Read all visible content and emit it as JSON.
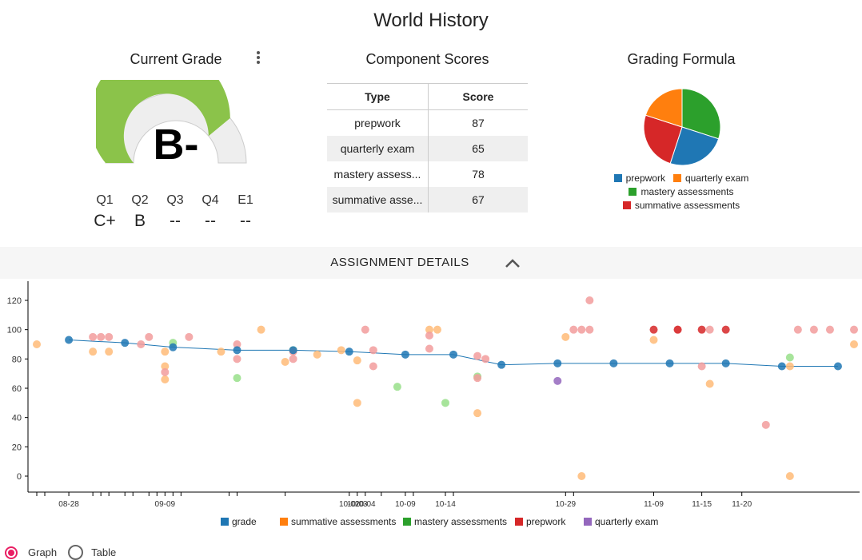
{
  "page": {
    "title": "World History"
  },
  "current_grade": {
    "title": "Current Grade",
    "letter": "B-",
    "gauge_fraction": 0.78,
    "colors": {
      "fill": "#8bc34a",
      "track": "#eeeeee"
    },
    "quarters": [
      {
        "label": "Q1",
        "value": "C+"
      },
      {
        "label": "Q2",
        "value": "B"
      },
      {
        "label": "Q3",
        "value": "--"
      },
      {
        "label": "Q4",
        "value": "--"
      },
      {
        "label": "E1",
        "value": "--"
      }
    ]
  },
  "component_scores": {
    "title": "Component Scores",
    "headers": [
      "Type",
      "Score"
    ],
    "rows": [
      {
        "type": "prepwork",
        "score": "87"
      },
      {
        "type": "quarterly exam",
        "score": "65"
      },
      {
        "type": "mastery assess...",
        "score": "78"
      },
      {
        "type": "summative asse...",
        "score": "67"
      }
    ]
  },
  "grading_formula": {
    "title": "Grading Formula",
    "legend": [
      {
        "label": "prepwork",
        "color": "#1f77b4"
      },
      {
        "label": "quarterly exam",
        "color": "#ff7f0e"
      },
      {
        "label": "mastery assessments",
        "color": "#2ca02c"
      },
      {
        "label": "summative assessments",
        "color": "#d62728"
      }
    ]
  },
  "details": {
    "label": "ASSIGNMENT DETAILS",
    "chevron": "chevron-up-icon"
  },
  "view_toggle": {
    "graph_label": "Graph",
    "table_label": "Table",
    "selected": "Graph"
  },
  "chart_data": [
    {
      "type": "pie",
      "categories": [
        "prepwork",
        "quarterly exam",
        "mastery assessments",
        "summative assessments"
      ],
      "values": [
        25,
        20,
        30,
        25
      ],
      "colors": [
        "#1f77b4",
        "#ff7f0e",
        "#2ca02c",
        "#d62728"
      ]
    },
    {
      "type": "scatter",
      "xlabel": "",
      "ylabel": "",
      "ylim": [
        -10,
        130
      ],
      "yticks": [
        0,
        20,
        40,
        60,
        80,
        100,
        120
      ],
      "xlim": [
        "08-24",
        "10-31"
      ],
      "xticks": [
        {
          "date": "08-24",
          "label": ""
        },
        {
          "date": "08-25",
          "label": ""
        },
        {
          "date": "08-28",
          "label": "08-28"
        },
        {
          "date": "08-31",
          "label": ""
        },
        {
          "date": "09-01",
          "label": ""
        },
        {
          "date": "09-02",
          "label": ""
        },
        {
          "date": "09-04",
          "label": ""
        },
        {
          "date": "09-05",
          "label": ""
        },
        {
          "date": "09-07",
          "label": ""
        },
        {
          "date": "09-08",
          "label": ""
        },
        {
          "date": "09-09",
          "label": "09-09"
        },
        {
          "date": "09-10",
          "label": ""
        },
        {
          "date": "09-11",
          "label": ""
        },
        {
          "date": "09-17",
          "label": ""
        },
        {
          "date": "09-18",
          "label": ""
        },
        {
          "date": "09-24",
          "label": ""
        },
        {
          "date": "10-02",
          "label": "10-02"
        },
        {
          "date": "10-03",
          "label": "10-03"
        },
        {
          "date": "10-04",
          "label": "10-04"
        },
        {
          "date": "10-06",
          "label": ""
        },
        {
          "date": "10-09",
          "label": "10-09"
        },
        {
          "date": "10-10",
          "label": ""
        },
        {
          "date": "10-14",
          "label": "10-14"
        },
        {
          "date": "10-15",
          "label": ""
        },
        {
          "date": "10-29",
          "label": "10-29"
        },
        {
          "date": "10-30",
          "label": ""
        },
        {
          "date": "11-09",
          "label": "11-09"
        },
        {
          "date": "11-15",
          "label": "11-15"
        },
        {
          "date": "11-20",
          "label": "11-20"
        }
      ],
      "grid": false,
      "legend_position": "bottom",
      "series": [
        {
          "name": "grade",
          "color": "#1f77b4",
          "line": true,
          "points": [
            {
              "x": "08-28",
              "y": 93
            },
            {
              "x": "09-04",
              "y": 91
            },
            {
              "x": "09-10",
              "y": 88
            },
            {
              "x": "09-18",
              "y": 86
            },
            {
              "x": "09-25",
              "y": 86
            },
            {
              "x": "10-02",
              "y": 85
            },
            {
              "x": "10-09",
              "y": 83
            },
            {
              "x": "10-15",
              "y": 83
            },
            {
              "x": "10-21",
              "y": 76
            },
            {
              "x": "10-28",
              "y": 77
            },
            {
              "x": "11-04",
              "y": 77
            },
            {
              "x": "11-11",
              "y": 77
            },
            {
              "x": "11-18",
              "y": 77
            },
            {
              "x": "11-25",
              "y": 75
            },
            {
              "x": "12-02",
              "y": 75
            }
          ]
        },
        {
          "name": "summative assessments",
          "color": "#ffbb78",
          "points": [
            {
              "x": "08-24",
              "y": 90
            },
            {
              "x": "08-31",
              "y": 85
            },
            {
              "x": "09-02",
              "y": 85
            },
            {
              "x": "09-09",
              "y": 85
            },
            {
              "x": "09-09",
              "y": 75
            },
            {
              "x": "09-09",
              "y": 66
            },
            {
              "x": "09-16",
              "y": 85
            },
            {
              "x": "09-21",
              "y": 100
            },
            {
              "x": "09-24",
              "y": 78
            },
            {
              "x": "09-28",
              "y": 83
            },
            {
              "x": "10-01",
              "y": 86
            },
            {
              "x": "10-03",
              "y": 79
            },
            {
              "x": "10-03",
              "y": 50
            },
            {
              "x": "10-12",
              "y": 100
            },
            {
              "x": "10-13",
              "y": 100
            },
            {
              "x": "10-18",
              "y": 43
            },
            {
              "x": "10-29",
              "y": 95
            },
            {
              "x": "10-31",
              "y": 0
            },
            {
              "x": "11-09",
              "y": 93
            },
            {
              "x": "11-16",
              "y": 63
            },
            {
              "x": "11-26",
              "y": 0
            },
            {
              "x": "11-26",
              "y": 75
            },
            {
              "x": "12-04",
              "y": 90
            }
          ]
        },
        {
          "name": "mastery assessments",
          "color": "#98df8a",
          "points": [
            {
              "x": "09-10",
              "y": 91
            },
            {
              "x": "09-18",
              "y": 67
            },
            {
              "x": "09-25",
              "y": 86
            },
            {
              "x": "10-08",
              "y": 61
            },
            {
              "x": "10-14",
              "y": 50
            },
            {
              "x": "10-18",
              "y": 68
            },
            {
              "x": "11-26",
              "y": 81
            }
          ]
        },
        {
          "name": "prepwork",
          "color": "#f29c9c",
          "points": [
            {
              "x": "08-31",
              "y": 95
            },
            {
              "x": "09-01",
              "y": 95
            },
            {
              "x": "09-02",
              "y": 95
            },
            {
              "x": "09-06",
              "y": 90
            },
            {
              "x": "09-07",
              "y": 95
            },
            {
              "x": "09-09",
              "y": 71
            },
            {
              "x": "09-12",
              "y": 95
            },
            {
              "x": "09-18",
              "y": 90
            },
            {
              "x": "09-18",
              "y": 80
            },
            {
              "x": "09-25",
              "y": 85
            },
            {
              "x": "09-25",
              "y": 80
            },
            {
              "x": "10-04",
              "y": 100
            },
            {
              "x": "10-05",
              "y": 86
            },
            {
              "x": "10-05",
              "y": 75
            },
            {
              "x": "10-12",
              "y": 96
            },
            {
              "x": "10-12",
              "y": 87
            },
            {
              "x": "10-18",
              "y": 82
            },
            {
              "x": "10-18",
              "y": 67
            },
            {
              "x": "10-19",
              "y": 80
            },
            {
              "x": "10-30",
              "y": 100
            },
            {
              "x": "10-31",
              "y": 100
            },
            {
              "x": "11-01",
              "y": 100
            },
            {
              "x": "11-01",
              "y": 120
            },
            {
              "x": "11-12",
              "y": 100
            },
            {
              "x": "11-15",
              "y": 75
            },
            {
              "x": "11-16",
              "y": 100
            },
            {
              "x": "11-23",
              "y": 35
            },
            {
              "x": "11-27",
              "y": 100
            },
            {
              "x": "11-29",
              "y": 100
            },
            {
              "x": "12-01",
              "y": 100
            },
            {
              "x": "12-04",
              "y": 100
            }
          ]
        },
        {
          "name": "prepwork-strong",
          "color": "#d62728",
          "legend": false,
          "points": [
            {
              "x": "11-09",
              "y": 100
            },
            {
              "x": "11-12",
              "y": 100
            },
            {
              "x": "11-15",
              "y": 100
            },
            {
              "x": "11-18",
              "y": 100
            }
          ]
        },
        {
          "name": "quarterly exam",
          "color": "#9467bd",
          "points": [
            {
              "x": "10-28",
              "y": 65
            }
          ]
        }
      ],
      "legend": [
        {
          "label": "grade",
          "color": "#1f77b4"
        },
        {
          "label": "summative assessments",
          "color": "#ff7f0e"
        },
        {
          "label": "mastery assessments",
          "color": "#2ca02c"
        },
        {
          "label": "prepwork",
          "color": "#d62728"
        },
        {
          "label": "quarterly exam",
          "color": "#9467bd"
        }
      ]
    }
  ]
}
